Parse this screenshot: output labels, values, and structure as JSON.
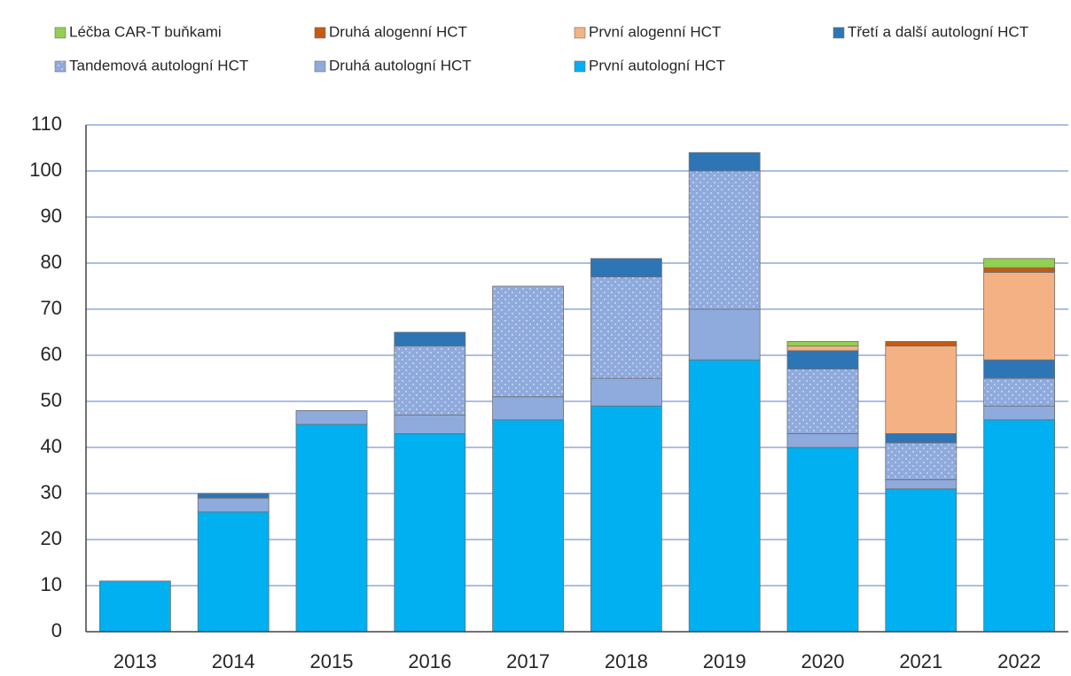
{
  "chart_data": {
    "type": "stacked_bar",
    "categories": [
      "2013",
      "2014",
      "2015",
      "2016",
      "2017",
      "2018",
      "2019",
      "2020",
      "2021",
      "2022"
    ],
    "series": [
      {
        "name": "První autologní HCT",
        "color": "#00b0f0",
        "values": [
          11,
          26,
          45,
          43,
          46,
          49,
          59,
          40,
          31,
          46
        ]
      },
      {
        "name": "Druhá autologní HCT",
        "color": "#8faadc",
        "values": [
          0,
          3,
          3,
          4,
          5,
          6,
          11,
          3,
          2,
          3
        ]
      },
      {
        "name": "Tandemová autologní HCT",
        "color": "#8faadc",
        "pattern": "dots",
        "values": [
          0,
          0,
          0,
          15,
          24,
          22,
          30,
          14,
          8,
          6
        ]
      },
      {
        "name": "Třetí a další autologní HCT",
        "color": "#2e75b6",
        "values": [
          0,
          1,
          0,
          3,
          0,
          4,
          4,
          4,
          2,
          4
        ]
      },
      {
        "name": "První alogenní HCT",
        "color": "#f4b183",
        "values": [
          0,
          0,
          0,
          0,
          0,
          0,
          0,
          1,
          19,
          19
        ]
      },
      {
        "name": "Druhá alogenní HCT",
        "color": "#c55a11",
        "values": [
          0,
          0,
          0,
          0,
          0,
          0,
          0,
          0,
          1,
          1
        ]
      },
      {
        "name": "Léčba CAR-T buňkami",
        "color": "#92d050",
        "values": [
          0,
          0,
          0,
          0,
          0,
          0,
          0,
          1,
          0,
          2
        ]
      }
    ],
    "ylim": [
      0,
      110
    ],
    "yticks": [
      0,
      10,
      20,
      30,
      40,
      50,
      60,
      70,
      80,
      90,
      100,
      110
    ],
    "grid": true
  }
}
